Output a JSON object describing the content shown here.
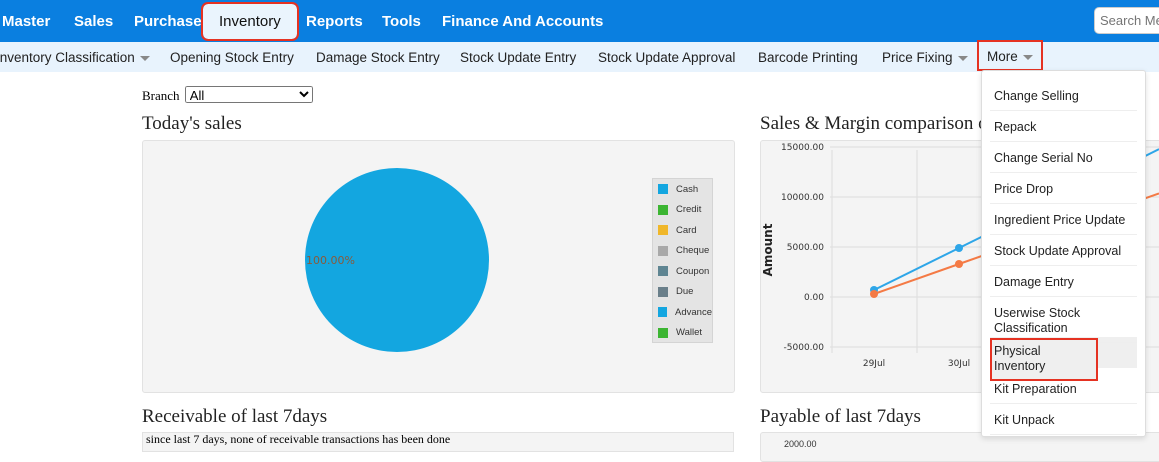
{
  "topnav": {
    "items": [
      "Master",
      "Sales",
      "Purchase",
      "Inventory",
      "Reports",
      "Tools",
      "Finance And Accounts"
    ],
    "active": "Inventory",
    "search_placeholder": "Search Me"
  },
  "subnav": {
    "items": [
      "Inventory Classification",
      "Opening Stock Entry",
      "Damage Stock Entry",
      "Stock Update Entry",
      "Stock Update Approval",
      "Barcode Printing",
      "Price Fixing",
      "More"
    ]
  },
  "branch": {
    "label": "Branch",
    "value": "All"
  },
  "todays_sales": {
    "title": "Today's sales",
    "slice_label": "100.00%",
    "legend": [
      {
        "name": "Cash",
        "color": "#13a6e0"
      },
      {
        "name": "Credit",
        "color": "#3cb532"
      },
      {
        "name": "Card",
        "color": "#f0b72a"
      },
      {
        "name": "Cheque",
        "color": "#a9a9a9"
      },
      {
        "name": "Coupon",
        "color": "#5f8592"
      },
      {
        "name": "Due",
        "color": "#6a7f8a"
      },
      {
        "name": "Advance",
        "color": "#13a6e0"
      },
      {
        "name": "Wallet",
        "color": "#3cb532"
      }
    ]
  },
  "chart_data": [
    {
      "type": "pie",
      "title": "Today's sales",
      "categories": [
        "Cash"
      ],
      "values": [
        100
      ]
    },
    {
      "type": "line",
      "title": "Sales & Margin comparison of",
      "ylabel": "Amount",
      "ylim": [
        -5000,
        15000
      ],
      "yticks": [
        "15000.00",
        "10000.00",
        "5000.00",
        "0.00",
        "-5000.00"
      ],
      "categories": [
        "29Jul",
        "30Jul"
      ],
      "series": [
        {
          "color": "#2ea6e8",
          "values": [
            700,
            4900
          ]
        },
        {
          "color": "#f47a45",
          "values": [
            300,
            3300
          ]
        }
      ]
    }
  ],
  "receivable": {
    "title": "Receivable of last 7days",
    "message": "since last 7 days, none of receivable transactions has been done"
  },
  "payable": {
    "title": "Payable of last 7days",
    "first_tick": "2000.00"
  },
  "more_menu": {
    "items": [
      "Change Selling",
      "Repack",
      "Change Serial No",
      "Price Drop",
      "Ingredient Price Update",
      "Stock Update Approval",
      "Damage Entry",
      "Userwise Stock Classification",
      "Physical Inventory",
      "Kit Preparation",
      "Kit Unpack"
    ],
    "highlighted": "Physical Inventory"
  }
}
